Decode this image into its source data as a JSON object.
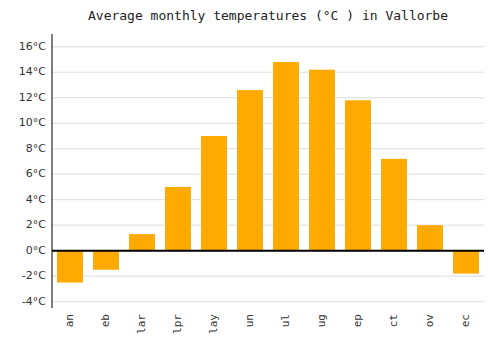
{
  "chart_data": {
    "type": "bar",
    "title": "Average monthly temperatures (°C ) in Vallorbe",
    "categories": [
      "an",
      "eb",
      "lar",
      "lpr",
      "lay",
      "un",
      "ul",
      "ug",
      "ep",
      "ct",
      "ov",
      "ec"
    ],
    "values": [
      -2.5,
      -1.5,
      1.3,
      5.0,
      9.0,
      12.6,
      14.8,
      14.2,
      11.8,
      7.2,
      2.0,
      -1.8
    ],
    "color": "#FFAA00",
    "ylim": [
      -4.5,
      17
    ],
    "yticks": [
      {
        "value": -4,
        "label": "-4°C"
      },
      {
        "value": -2,
        "label": "-2°C"
      },
      {
        "value": 0,
        "label": "0°C"
      },
      {
        "value": 2,
        "label": "2°C"
      },
      {
        "value": 4,
        "label": "4°C"
      },
      {
        "value": 6,
        "label": "6°C"
      },
      {
        "value": 8,
        "label": "8°C"
      },
      {
        "value": 10,
        "label": "10°C"
      },
      {
        "value": 12,
        "label": "12°C"
      },
      {
        "value": 14,
        "label": "14°C"
      },
      {
        "value": 16,
        "label": "16°C"
      }
    ],
    "grid": true
  }
}
